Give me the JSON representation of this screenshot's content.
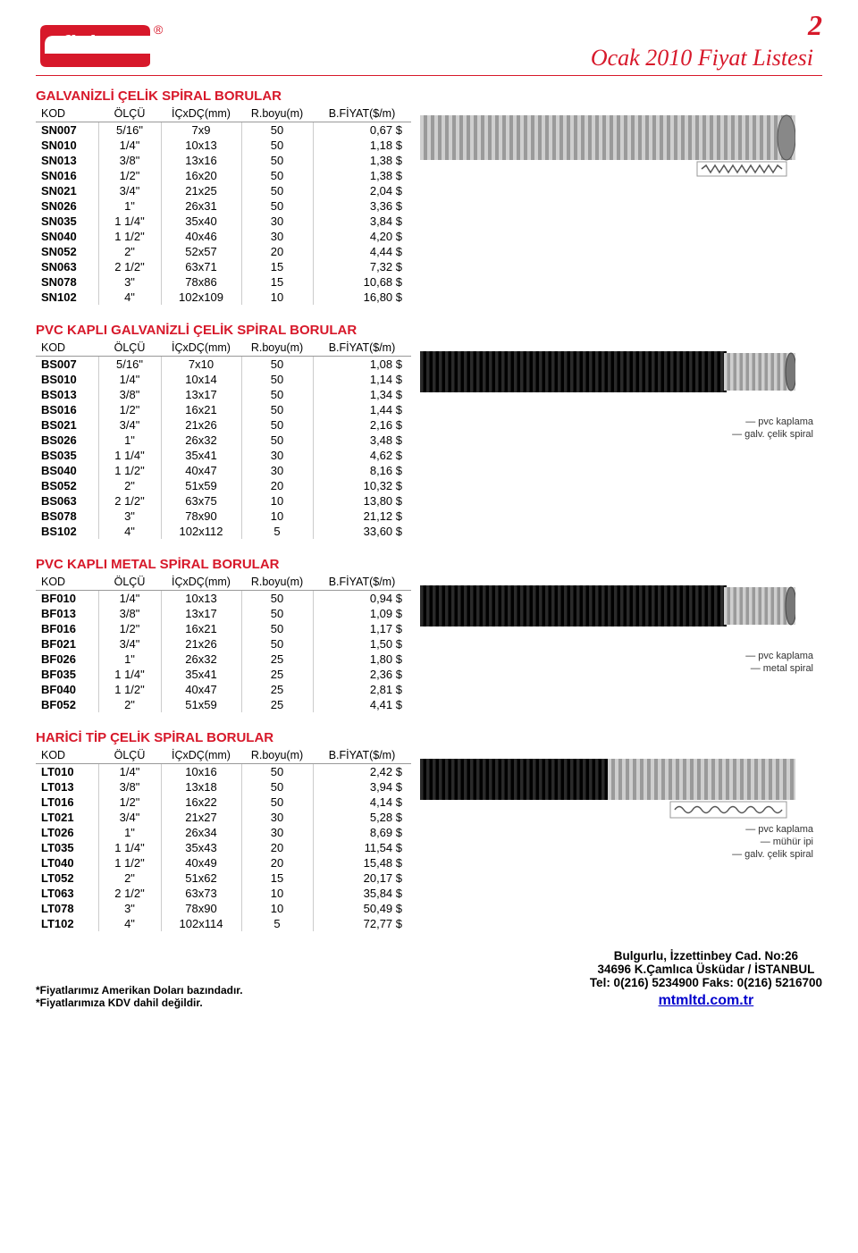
{
  "page_number": "2",
  "doc_title": "Ocak 2010 Fiyat Listesi",
  "brand": "fleksan",
  "brand_reg": "®",
  "sections": [
    {
      "title": "GALVANİZLİ ÇELİK SPİRAL BORULAR",
      "headers": [
        "KOD",
        "ÖLÇÜ",
        "İÇxDÇ(mm)",
        "R.boyu(m)",
        "B.FİYAT($/m)"
      ],
      "rows": [
        [
          "SN007",
          "5/16\"",
          "7x9",
          "50",
          "0,67 $"
        ],
        [
          "SN010",
          "1/4\"",
          "10x13",
          "50",
          "1,18 $"
        ],
        [
          "SN013",
          "3/8\"",
          "13x16",
          "50",
          "1,38 $"
        ],
        [
          "SN016",
          "1/2\"",
          "16x20",
          "50",
          "1,38 $"
        ],
        [
          "SN021",
          "3/4\"",
          "21x25",
          "50",
          "2,04 $"
        ],
        [
          "SN026",
          "1\"",
          "26x31",
          "50",
          "3,36 $"
        ],
        [
          "SN035",
          "1 1/4\"",
          "35x40",
          "30",
          "3,84 $"
        ],
        [
          "SN040",
          "1 1/2\"",
          "40x46",
          "30",
          "4,20 $"
        ],
        [
          "SN052",
          "2\"",
          "52x57",
          "20",
          "4,44 $"
        ],
        [
          "SN063",
          "2 1/2\"",
          "63x71",
          "15",
          "7,32 $"
        ],
        [
          "SN078",
          "3\"",
          "78x86",
          "15",
          "10,68 $"
        ],
        [
          "SN102",
          "4\"",
          "102x109",
          "10",
          "16,80 $"
        ]
      ],
      "labels": []
    },
    {
      "title": "PVC KAPLI GALVANİZLİ ÇELİK SPİRAL BORULAR",
      "headers": [
        "KOD",
        "ÖLÇÜ",
        "İÇxDÇ(mm)",
        "R.boyu(m)",
        "B.FİYAT($/m)"
      ],
      "rows": [
        [
          "BS007",
          "5/16\"",
          "7x10",
          "50",
          "1,08 $"
        ],
        [
          "BS010",
          "1/4\"",
          "10x14",
          "50",
          "1,14 $"
        ],
        [
          "BS013",
          "3/8\"",
          "13x17",
          "50",
          "1,34 $"
        ],
        [
          "BS016",
          "1/2\"",
          "16x21",
          "50",
          "1,44 $"
        ],
        [
          "BS021",
          "3/4\"",
          "21x26",
          "50",
          "2,16 $"
        ],
        [
          "BS026",
          "1\"",
          "26x32",
          "50",
          "3,48 $"
        ],
        [
          "BS035",
          "1 1/4\"",
          "35x41",
          "30",
          "4,62 $"
        ],
        [
          "BS040",
          "1 1/2\"",
          "40x47",
          "30",
          "8,16 $"
        ],
        [
          "BS052",
          "2\"",
          "51x59",
          "20",
          "10,32 $"
        ],
        [
          "BS063",
          "2 1/2\"",
          "63x75",
          "10",
          "13,80 $"
        ],
        [
          "BS078",
          "3\"",
          "78x90",
          "10",
          "21,12 $"
        ],
        [
          "BS102",
          "4\"",
          "102x112",
          "5",
          "33,60 $"
        ]
      ],
      "labels": [
        "pvc kaplama",
        "galv. çelik spiral"
      ]
    },
    {
      "title": "PVC KAPLI METAL SPİRAL BORULAR",
      "headers": [
        "KOD",
        "ÖLÇÜ",
        "İÇxDÇ(mm)",
        "R.boyu(m)",
        "B.FİYAT($/m)"
      ],
      "rows": [
        [
          "BF010",
          "1/4\"",
          "10x13",
          "50",
          "0,94 $"
        ],
        [
          "BF013",
          "3/8\"",
          "13x17",
          "50",
          "1,09 $"
        ],
        [
          "BF016",
          "1/2\"",
          "16x21",
          "50",
          "1,17 $"
        ],
        [
          "BF021",
          "3/4\"",
          "21x26",
          "50",
          "1,50 $"
        ],
        [
          "BF026",
          "1\"",
          "26x32",
          "25",
          "1,80 $"
        ],
        [
          "BF035",
          "1 1/4\"",
          "35x41",
          "25",
          "2,36 $"
        ],
        [
          "BF040",
          "1 1/2\"",
          "40x47",
          "25",
          "2,81 $"
        ],
        [
          "BF052",
          "2\"",
          "51x59",
          "25",
          "4,41 $"
        ]
      ],
      "labels": [
        "pvc kaplama",
        "metal spiral"
      ]
    },
    {
      "title": "HARİCİ TİP ÇELİK SPİRAL BORULAR",
      "headers": [
        "KOD",
        "ÖLÇÜ",
        "İÇxDÇ(mm)",
        "R.boyu(m)",
        "B.FİYAT($/m)"
      ],
      "rows": [
        [
          "LT010",
          "1/4\"",
          "10x16",
          "50",
          "2,42 $"
        ],
        [
          "LT013",
          "3/8\"",
          "13x18",
          "50",
          "3,94 $"
        ],
        [
          "LT016",
          "1/2\"",
          "16x22",
          "50",
          "4,14 $"
        ],
        [
          "LT021",
          "3/4\"",
          "21x27",
          "30",
          "5,28 $"
        ],
        [
          "LT026",
          "1\"",
          "26x34",
          "30",
          "8,69 $"
        ],
        [
          "LT035",
          "1 1/4\"",
          "35x43",
          "20",
          "11,54 $"
        ],
        [
          "LT040",
          "1 1/2\"",
          "40x49",
          "20",
          "15,48 $"
        ],
        [
          "LT052",
          "2\"",
          "51x62",
          "15",
          "20,17 $"
        ],
        [
          "LT063",
          "2 1/2\"",
          "63x73",
          "10",
          "35,84 $"
        ],
        [
          "LT078",
          "3\"",
          "78x90",
          "10",
          "50,49 $"
        ],
        [
          "LT102",
          "4\"",
          "102x114",
          "5",
          "72,77 $"
        ]
      ],
      "labels": [
        "pvc kaplama",
        "mühür ipi",
        "galv. çelik spiral"
      ]
    }
  ],
  "footer": {
    "note1": "*Fiyatlarımız Amerikan Doları bazındadır.",
    "note2": "*Fiyatlarımıza KDV dahil değildir.",
    "addr1": "Bulgurlu, İzzettinbey Cad. No:26",
    "addr2": "34696 K.Çamlıca Üsküdar / İSTANBUL",
    "addr3": "Tel: 0(216) 5234900   Faks: 0(216) 5216700",
    "link": "mtmltd.com.tr"
  },
  "colors": {
    "brand_red": "#d7182a",
    "text": "#000000",
    "link": "#0000cc",
    "border": "#cccccc"
  }
}
